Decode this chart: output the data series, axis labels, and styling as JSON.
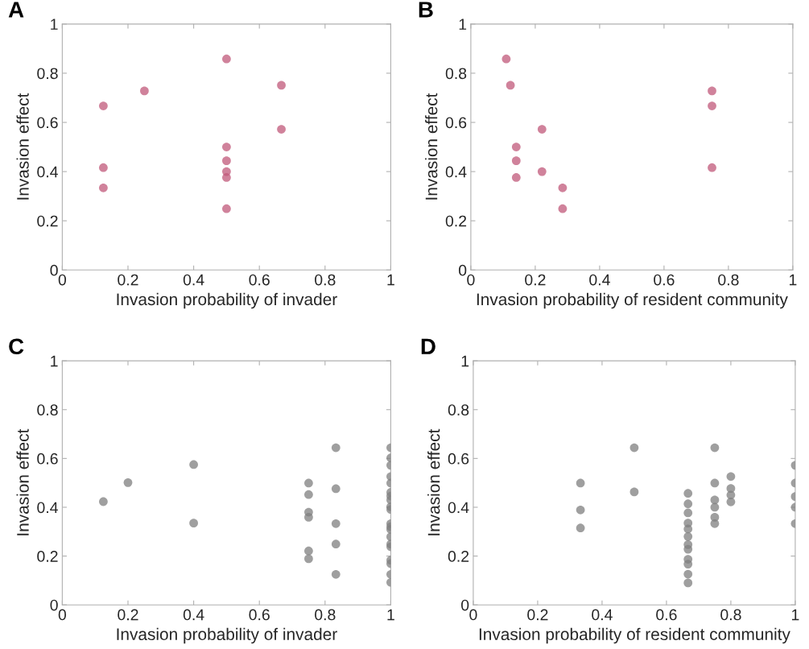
{
  "chart_data": [
    {
      "type": "scatter",
      "title": "A",
      "xlabel": "Invasion probability of invader",
      "ylabel": "Invasion effect",
      "marker": "circle",
      "grid": false,
      "xlim": [
        0,
        1
      ],
      "ylim": [
        0,
        1
      ],
      "xticks": [
        0,
        0.2,
        0.4,
        0.6,
        0.8,
        1
      ],
      "yticks": [
        0,
        0.2,
        0.4,
        0.6,
        0.8,
        1
      ],
      "series": [
        {
          "color": "#c0587a",
          "x": [
            0.125,
            0.125,
            0.125,
            0.25,
            0.5,
            0.5,
            0.5,
            0.5,
            0.5,
            0.5,
            0.667,
            0.667
          ],
          "values": [
            0.667,
            0.416,
            0.334,
            0.728,
            0.858,
            0.5,
            0.444,
            0.4,
            0.376,
            0.249,
            0.751,
            0.572
          ]
        }
      ]
    },
    {
      "type": "scatter",
      "title": "B",
      "xlabel": "Invasion probability of resident community",
      "ylabel": "Invasion effect",
      "marker": "circle",
      "grid": false,
      "xlim": [
        0,
        1
      ],
      "ylim": [
        0,
        1
      ],
      "xticks": [
        0,
        0.2,
        0.4,
        0.6,
        0.8,
        1
      ],
      "yticks": [
        0,
        0.2,
        0.4,
        0.6,
        0.8,
        1
      ],
      "series": [
        {
          "color": "#c0587a",
          "x": [
            0.11,
            0.123,
            0.141,
            0.141,
            0.141,
            0.221,
            0.221,
            0.285,
            0.285,
            0.749,
            0.749,
            0.749
          ],
          "values": [
            0.858,
            0.751,
            0.5,
            0.444,
            0.376,
            0.572,
            0.4,
            0.334,
            0.249,
            0.728,
            0.667,
            0.416
          ]
        }
      ]
    },
    {
      "type": "scatter",
      "title": "C",
      "xlabel": "Invasion probability of invader",
      "ylabel": "Invasion effect",
      "marker": "circle",
      "grid": false,
      "xlim": [
        0,
        1
      ],
      "ylim": [
        0,
        1
      ],
      "xticks": [
        0,
        0.2,
        0.4,
        0.6,
        0.8,
        1
      ],
      "yticks": [
        0,
        0.2,
        0.4,
        0.6,
        0.8,
        1
      ],
      "series": [
        {
          "color": "#7f7f7f",
          "x": [
            0.125,
            0.2,
            0.4,
            0.4,
            0.75,
            0.75,
            0.75,
            0.75,
            0.75,
            0.75,
            0.833,
            0.833,
            0.833,
            0.833,
            0.833,
            1,
            1,
            1,
            1,
            1,
            1,
            1,
            1,
            1,
            1,
            1,
            1,
            1,
            1,
            1,
            1,
            1,
            1,
            1,
            1
          ],
          "values": [
            0.423,
            0.501,
            0.575,
            0.335,
            0.499,
            0.452,
            0.38,
            0.359,
            0.221,
            0.189,
            0.644,
            0.476,
            0.333,
            0.249,
            0.125,
            0.644,
            0.602,
            0.572,
            0.526,
            0.499,
            0.461,
            0.446,
            0.43,
            0.402,
            0.391,
            0.333,
            0.32,
            0.309,
            0.279,
            0.249,
            0.238,
            0.183,
            0.169,
            0.125,
            0.092
          ]
        }
      ]
    },
    {
      "type": "scatter",
      "title": "D",
      "xlabel": "Invasion probability of resident community",
      "ylabel": "Invasion effect",
      "marker": "circle",
      "grid": false,
      "xlim": [
        0,
        1
      ],
      "ylim": [
        0,
        1
      ],
      "xticks": [
        0,
        0.2,
        0.4,
        0.6,
        0.8,
        1
      ],
      "yticks": [
        0,
        0.2,
        0.4,
        0.6,
        0.8,
        1
      ],
      "series": [
        {
          "color": "#7f7f7f",
          "x": [
            0.333,
            0.333,
            0.333,
            0.5,
            0.5,
            0.667,
            0.667,
            0.667,
            0.667,
            0.667,
            0.667,
            0.667,
            0.667,
            0.667,
            0.667,
            0.667,
            0.667,
            0.75,
            0.75,
            0.75,
            0.75,
            0.75,
            0.75,
            0.8,
            0.8,
            0.8,
            0.8,
            1,
            1,
            1,
            1,
            1
          ],
          "values": [
            0.499,
            0.389,
            0.315,
            0.644,
            0.463,
            0.457,
            0.414,
            0.377,
            0.335,
            0.311,
            0.28,
            0.247,
            0.228,
            0.187,
            0.167,
            0.126,
            0.09,
            0.644,
            0.499,
            0.43,
            0.4,
            0.359,
            0.333,
            0.526,
            0.477,
            0.45,
            0.422,
            0.572,
            0.499,
            0.444,
            0.4,
            0.333
          ]
        }
      ]
    }
  ]
}
